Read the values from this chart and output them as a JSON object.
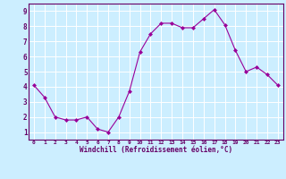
{
  "x": [
    0,
    1,
    2,
    3,
    4,
    5,
    6,
    7,
    8,
    9,
    10,
    11,
    12,
    13,
    14,
    15,
    16,
    17,
    18,
    19,
    20,
    21,
    22,
    23
  ],
  "y": [
    4.1,
    3.3,
    2.0,
    1.8,
    1.8,
    2.0,
    1.2,
    1.0,
    2.0,
    3.7,
    6.3,
    7.5,
    8.2,
    8.2,
    7.9,
    7.9,
    8.5,
    9.1,
    8.1,
    6.4,
    5.0,
    5.3,
    4.8,
    4.1
  ],
  "line_color": "#990099",
  "marker": "D",
  "marker_size": 2,
  "bg_color": "#cceeff",
  "grid_color": "#aaddcc",
  "xlabel": "Windchill (Refroidissement éolien,°C)",
  "xlabel_color": "#660066",
  "tick_color": "#660066",
  "spine_color": "#660066",
  "ylim": [
    0.5,
    9.5
  ],
  "xlim": [
    -0.5,
    23.5
  ],
  "yticks": [
    1,
    2,
    3,
    4,
    5,
    6,
    7,
    8,
    9
  ],
  "xticks": [
    0,
    1,
    2,
    3,
    4,
    5,
    6,
    7,
    8,
    9,
    10,
    11,
    12,
    13,
    14,
    15,
    16,
    17,
    18,
    19,
    20,
    21,
    22,
    23
  ],
  "figsize": [
    3.2,
    2.0
  ],
  "dpi": 100
}
